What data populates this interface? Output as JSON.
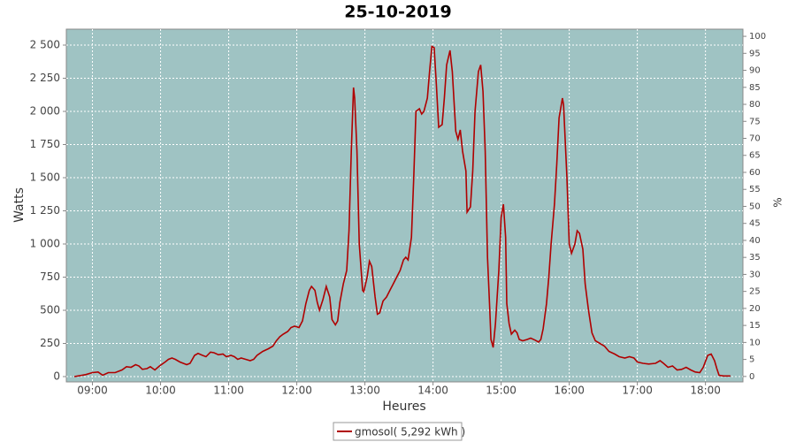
{
  "chart_data": {
    "type": "line",
    "title": "25-10-2019",
    "x_label": "Heures",
    "y_label": "Watts",
    "y2_label": "%",
    "x": [
      "08:44",
      "08:54",
      "09:00",
      "09:05",
      "09:09",
      "09:14",
      "09:20",
      "09:26",
      "09:30",
      "09:34",
      "09:38",
      "09:41",
      "09:44",
      "09:48",
      "09:51",
      "09:55",
      "09:59",
      "10:04",
      "10:07",
      "10:10",
      "10:13",
      "10:17",
      "10:23",
      "10:26",
      "10:30",
      "10:33",
      "10:37",
      "10:40",
      "10:44",
      "10:47",
      "10:51",
      "10:55",
      "10:58",
      "11:02",
      "11:05",
      "11:08",
      "11:11",
      "11:15",
      "11:19",
      "11:22",
      "11:25",
      "11:30",
      "11:35",
      "11:39",
      "11:42",
      "11:45",
      "11:48",
      "11:52",
      "11:55",
      "11:58",
      "12:02",
      "12:05",
      "12:08",
      "12:11",
      "12:13",
      "12:16",
      "12:18",
      "12:20",
      "12:23",
      "12:26",
      "12:29",
      "12:31",
      "12:34",
      "12:36",
      "12:38",
      "12:41",
      "12:44",
      "12:46",
      "12:48",
      "12:50",
      "12:51",
      "12:53",
      "12:55",
      "12:58",
      "12:59",
      "13:02",
      "13:04",
      "13:06",
      "13:09",
      "13:11",
      "13:13",
      "13:16",
      "13:19",
      "13:22",
      "13:25",
      "13:28",
      "13:31",
      "13:34",
      "13:36",
      "13:38",
      "13:41",
      "13:43",
      "13:45",
      "13:48",
      "13:50",
      "13:52",
      "13:55",
      "13:57",
      "13:59",
      "14:01",
      "14:03",
      "14:05",
      "14:08",
      "14:10",
      "14:12",
      "14:15",
      "14:17",
      "14:20",
      "14:22",
      "14:24",
      "14:26",
      "14:29",
      "14:30",
      "14:33",
      "14:35",
      "14:37",
      "14:40",
      "14:42",
      "14:44",
      "14:46",
      "14:48",
      "14:50",
      "14:51",
      "14:53",
      "14:55",
      "14:58",
      "15:00",
      "15:02",
      "15:04",
      "15:05",
      "15:07",
      "15:09",
      "15:12",
      "15:14",
      "15:16",
      "15:19",
      "15:23",
      "15:26",
      "15:30",
      "15:33",
      "15:35",
      "15:37",
      "15:40",
      "15:42",
      "15:44",
      "15:47",
      "15:49",
      "15:51",
      "15:54",
      "15:55",
      "15:58",
      "16:00",
      "16:02",
      "16:05",
      "16:07",
      "16:09",
      "16:12",
      "16:14",
      "16:17",
      "16:20",
      "16:23",
      "16:27",
      "16:31",
      "16:35",
      "16:40",
      "16:44",
      "16:49",
      "16:53",
      "16:57",
      "17:00",
      "17:05",
      "17:10",
      "17:16",
      "17:20",
      "17:23",
      "17:27",
      "17:31",
      "17:35",
      "17:39",
      "17:43",
      "17:47",
      "17:51",
      "17:55",
      "17:58",
      "18:02",
      "18:05",
      "18:08",
      "18:10",
      "18:12",
      "18:16",
      "18:22"
    ],
    "series": [
      {
        "name": "gmosol( 5,292 kWh )",
        "color": "#b00000",
        "values": [
          0,
          15,
          30,
          35,
          10,
          30,
          30,
          50,
          75,
          70,
          90,
          80,
          55,
          60,
          75,
          50,
          80,
          110,
          130,
          140,
          130,
          110,
          90,
          100,
          160,
          175,
          160,
          150,
          185,
          180,
          165,
          170,
          150,
          160,
          150,
          130,
          140,
          130,
          120,
          130,
          160,
          190,
          210,
          230,
          270,
          300,
          320,
          340,
          370,
          380,
          370,
          420,
          550,
          650,
          680,
          650,
          560,
          500,
          580,
          680,
          600,
          430,
          390,
          420,
          560,
          700,
          800,
          1100,
          1700,
          2180,
          2100,
          1700,
          1000,
          650,
          640,
          750,
          870,
          830,
          600,
          470,
          480,
          570,
          600,
          650,
          700,
          750,
          800,
          880,
          900,
          880,
          1050,
          1500,
          2000,
          2020,
          1980,
          2000,
          2100,
          2300,
          2490,
          2480,
          2200,
          1880,
          1900,
          2100,
          2350,
          2460,
          2300,
          1850,
          1790,
          1860,
          1700,
          1550,
          1240,
          1280,
          1550,
          2000,
          2300,
          2350,
          2150,
          1700,
          900,
          500,
          280,
          220,
          400,
          800,
          1200,
          1300,
          1050,
          550,
          400,
          320,
          350,
          330,
          280,
          270,
          280,
          290,
          275,
          260,
          280,
          360,
          550,
          750,
          1000,
          1300,
          1600,
          1950,
          2100,
          2050,
          1500,
          1000,
          930,
          1000,
          1100,
          1080,
          960,
          700,
          500,
          330,
          270,
          250,
          230,
          190,
          170,
          150,
          140,
          150,
          140,
          110,
          100,
          95,
          100,
          120,
          100,
          70,
          80,
          50,
          55,
          70,
          50,
          35,
          30,
          70,
          160,
          170,
          120,
          60,
          10,
          5,
          5
        ]
      }
    ],
    "xlim": [
      "08:37",
      "18:33"
    ],
    "xticks": [
      "09:00",
      "10:00",
      "11:00",
      "12:00",
      "13:00",
      "14:00",
      "15:00",
      "16:00",
      "17:00",
      "18:00"
    ],
    "ylim": [
      -40,
      2620
    ],
    "yticks": [
      0,
      250,
      500,
      750,
      {
        "value": 1000,
        "label": "1 000"
      },
      {
        "value": 1250,
        "label": "1 250"
      },
      {
        "value": 1500,
        "label": "1 500"
      },
      {
        "value": 1750,
        "label": "1 750"
      },
      {
        "value": 2000,
        "label": "2 000"
      },
      {
        "value": 2250,
        "label": "2 250"
      },
      {
        "value": 2500,
        "label": "2 500"
      }
    ],
    "y2lim": [
      -1.6,
      102.1
    ],
    "y2ticks": [
      0,
      5,
      10,
      15,
      20,
      25,
      30,
      35,
      40,
      45,
      50,
      55,
      60,
      65,
      70,
      75,
      80,
      85,
      90,
      95,
      100
    ],
    "grid": true,
    "legend": "bottom"
  }
}
